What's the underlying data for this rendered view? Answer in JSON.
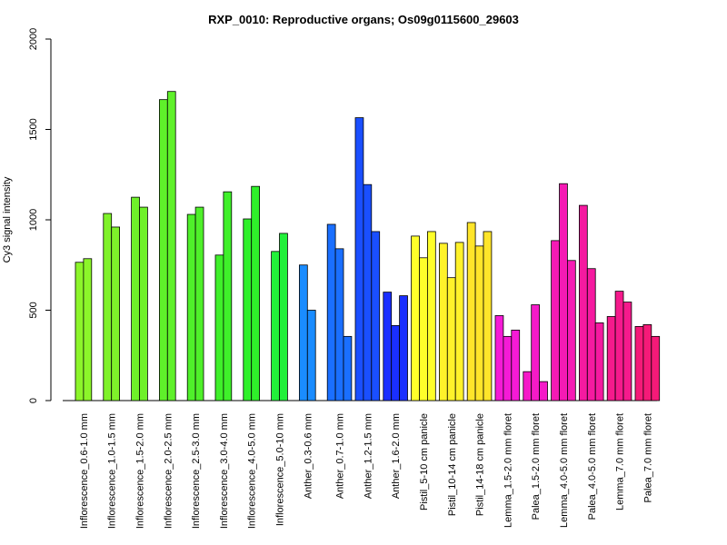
{
  "chart_data": {
    "type": "bar",
    "title": "RXP_0010: Reproductive organs; Os09g0115600_29603",
    "ylabel": "Cy3 signal intensity",
    "xlabel": "",
    "ylim": [
      0,
      2000
    ],
    "yticks": [
      0,
      500,
      1000,
      1500,
      2000
    ],
    "grid": false,
    "legend": "none",
    "categories": [
      {
        "label": "Inflorescence_0.6-1.0 mm",
        "color": "#8cf52a",
        "values": [
          765,
          785
        ]
      },
      {
        "label": "Inflorescence_1.0-1.5 mm",
        "color": "#7ff22a",
        "values": [
          1035,
          960
        ]
      },
      {
        "label": "Inflorescence_1.5-2.0 mm",
        "color": "#6ff02a",
        "values": [
          1125,
          1070
        ]
      },
      {
        "label": "Inflorescence_2.0-2.5 mm",
        "color": "#5ff02a",
        "values": [
          1665,
          1710
        ]
      },
      {
        "label": "Inflorescence_2.5-3.0 mm",
        "color": "#4ff02a",
        "values": [
          1030,
          1070
        ]
      },
      {
        "label": "Inflorescence_3.0-4.0 mm",
        "color": "#3ff02a",
        "values": [
          805,
          1155
        ]
      },
      {
        "label": "Inflorescence_4.0-5.0 mm",
        "color": "#2ff02a",
        "values": [
          1005,
          1185
        ]
      },
      {
        "label": "Inflorescence_5.0-10 mm",
        "color": "#22f03a",
        "values": [
          825,
          925
        ]
      },
      {
        "label": "Anther_0.3-0.6 mm",
        "color": "#1a8cff",
        "values": [
          750,
          500
        ]
      },
      {
        "label": "Anther_0.7-1.0 mm",
        "color": "#1a6fff",
        "values": [
          975,
          840,
          355
        ]
      },
      {
        "label": "Anther_1.2-1.5 mm",
        "color": "#1a4fff",
        "values": [
          1565,
          1195,
          935
        ]
      },
      {
        "label": "Anther_1.6-2.0 mm",
        "color": "#1a2fff",
        "values": [
          600,
          415,
          580
        ]
      },
      {
        "label": "Pistil_5-10 cm panicle",
        "color": "#ffff2a",
        "values": [
          910,
          790,
          935
        ]
      },
      {
        "label": "Pistil_10-14 cm panicle",
        "color": "#fff22a",
        "values": [
          870,
          680,
          875
        ]
      },
      {
        "label": "Pistil_14-18 cm panicle",
        "color": "#ffe52a",
        "values": [
          985,
          855,
          935
        ]
      },
      {
        "label": "Lemma_1.5-2.0 mm floret",
        "color": "#f51ad6",
        "values": [
          470,
          355,
          390
        ]
      },
      {
        "label": "Palea_1.5-2.0 mm floret",
        "color": "#f51ac8",
        "values": [
          160,
          530,
          105
        ]
      },
      {
        "label": "Lemma_4.0-5.0 mm floret",
        "color": "#f51ab4",
        "values": [
          885,
          1200,
          775
        ]
      },
      {
        "label": "Palea_4.0-5.0 mm floret",
        "color": "#f51aa0",
        "values": [
          1080,
          730,
          430
        ]
      },
      {
        "label": "Lemma_7.0 mm floret",
        "color": "#f51a8c",
        "values": [
          465,
          605,
          545
        ]
      },
      {
        "label": "Palea_7.0 mm floret",
        "color": "#f51a78",
        "values": [
          410,
          420,
          355
        ]
      }
    ]
  }
}
